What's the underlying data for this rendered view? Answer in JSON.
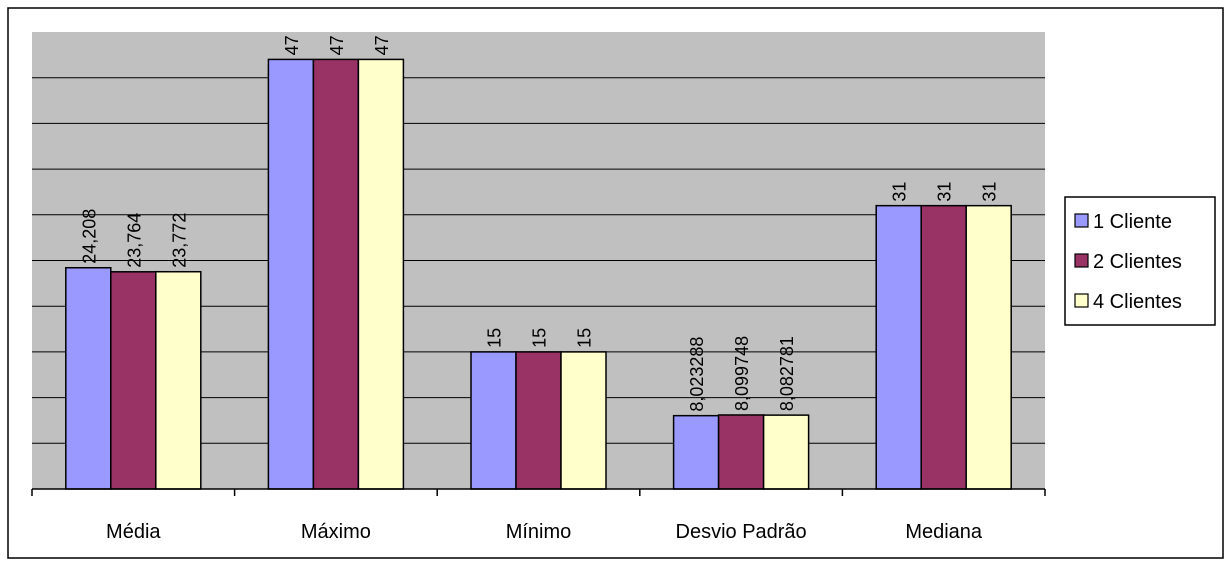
{
  "chart_data": {
    "type": "bar",
    "title": "",
    "xlabel": "",
    "ylabel": "",
    "categories": [
      "Média",
      "Máximo",
      "Mínimo",
      "Desvio Padrão",
      "Mediana"
    ],
    "series": [
      {
        "name": "1 Cliente",
        "color": "#9999ff",
        "values": [
          24.208,
          47,
          15,
          8.023288,
          31
        ],
        "labels": [
          "24,208",
          "47",
          "15",
          "8,023288",
          "31"
        ]
      },
      {
        "name": "2 Clientes",
        "color": "#993366",
        "values": [
          23.764,
          47,
          15,
          8.099748,
          31
        ],
        "labels": [
          "23,764",
          "47",
          "15",
          "8,099748",
          "31"
        ]
      },
      {
        "name": "4 Clientes",
        "color": "#ffffcc",
        "values": [
          23.772,
          47,
          15,
          8.082781,
          31
        ],
        "labels": [
          "23,772",
          "47",
          "15",
          "8,082781",
          "31"
        ]
      }
    ],
    "ylim": [
      0,
      50
    ],
    "grid": true,
    "plot_background": "#c0c0c0",
    "legend_position": "right"
  }
}
